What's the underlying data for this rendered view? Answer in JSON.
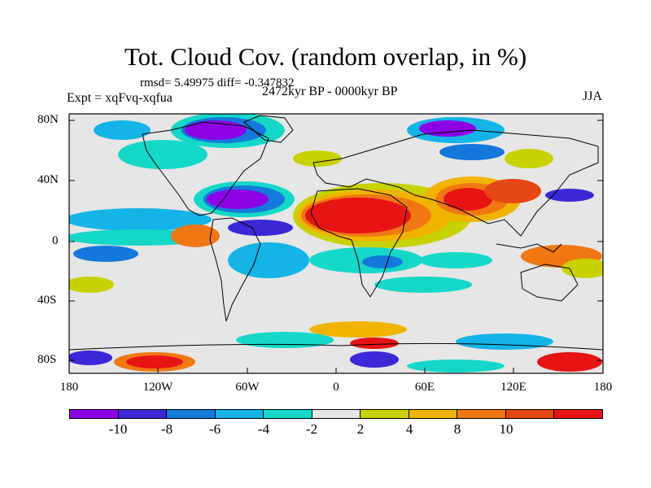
{
  "header": {
    "title": "Tot. Cloud Cov. (random overlap, in %)",
    "stats": "rmsd= 5.49975 diff= -0.347832",
    "period": "2472kyr BP - 0000kyr BP",
    "experiment": "Expt = xqFvq-xqfua",
    "season": "JJA"
  },
  "axes": {
    "y_ticks": [
      "80N",
      "40N",
      "0",
      "40S",
      "80S"
    ],
    "x_ticks": [
      "180",
      "120W",
      "60W",
      "0",
      "60E",
      "120E",
      "180"
    ]
  },
  "legend": {
    "colors": [
      "#8c00e6",
      "#3c28d7",
      "#1478dc",
      "#14b4e6",
      "#14d7c8",
      "#e6e6e6",
      "#c8d200",
      "#f0b400",
      "#f07814",
      "#e64614",
      "#e61414"
    ],
    "labels": [
      "-10",
      "-8",
      "-6",
      "-4",
      "-2",
      "2",
      "4",
      "8",
      "10"
    ]
  },
  "colors": {
    "land_default": "#e6e6e6",
    "coast": "#000000"
  }
}
